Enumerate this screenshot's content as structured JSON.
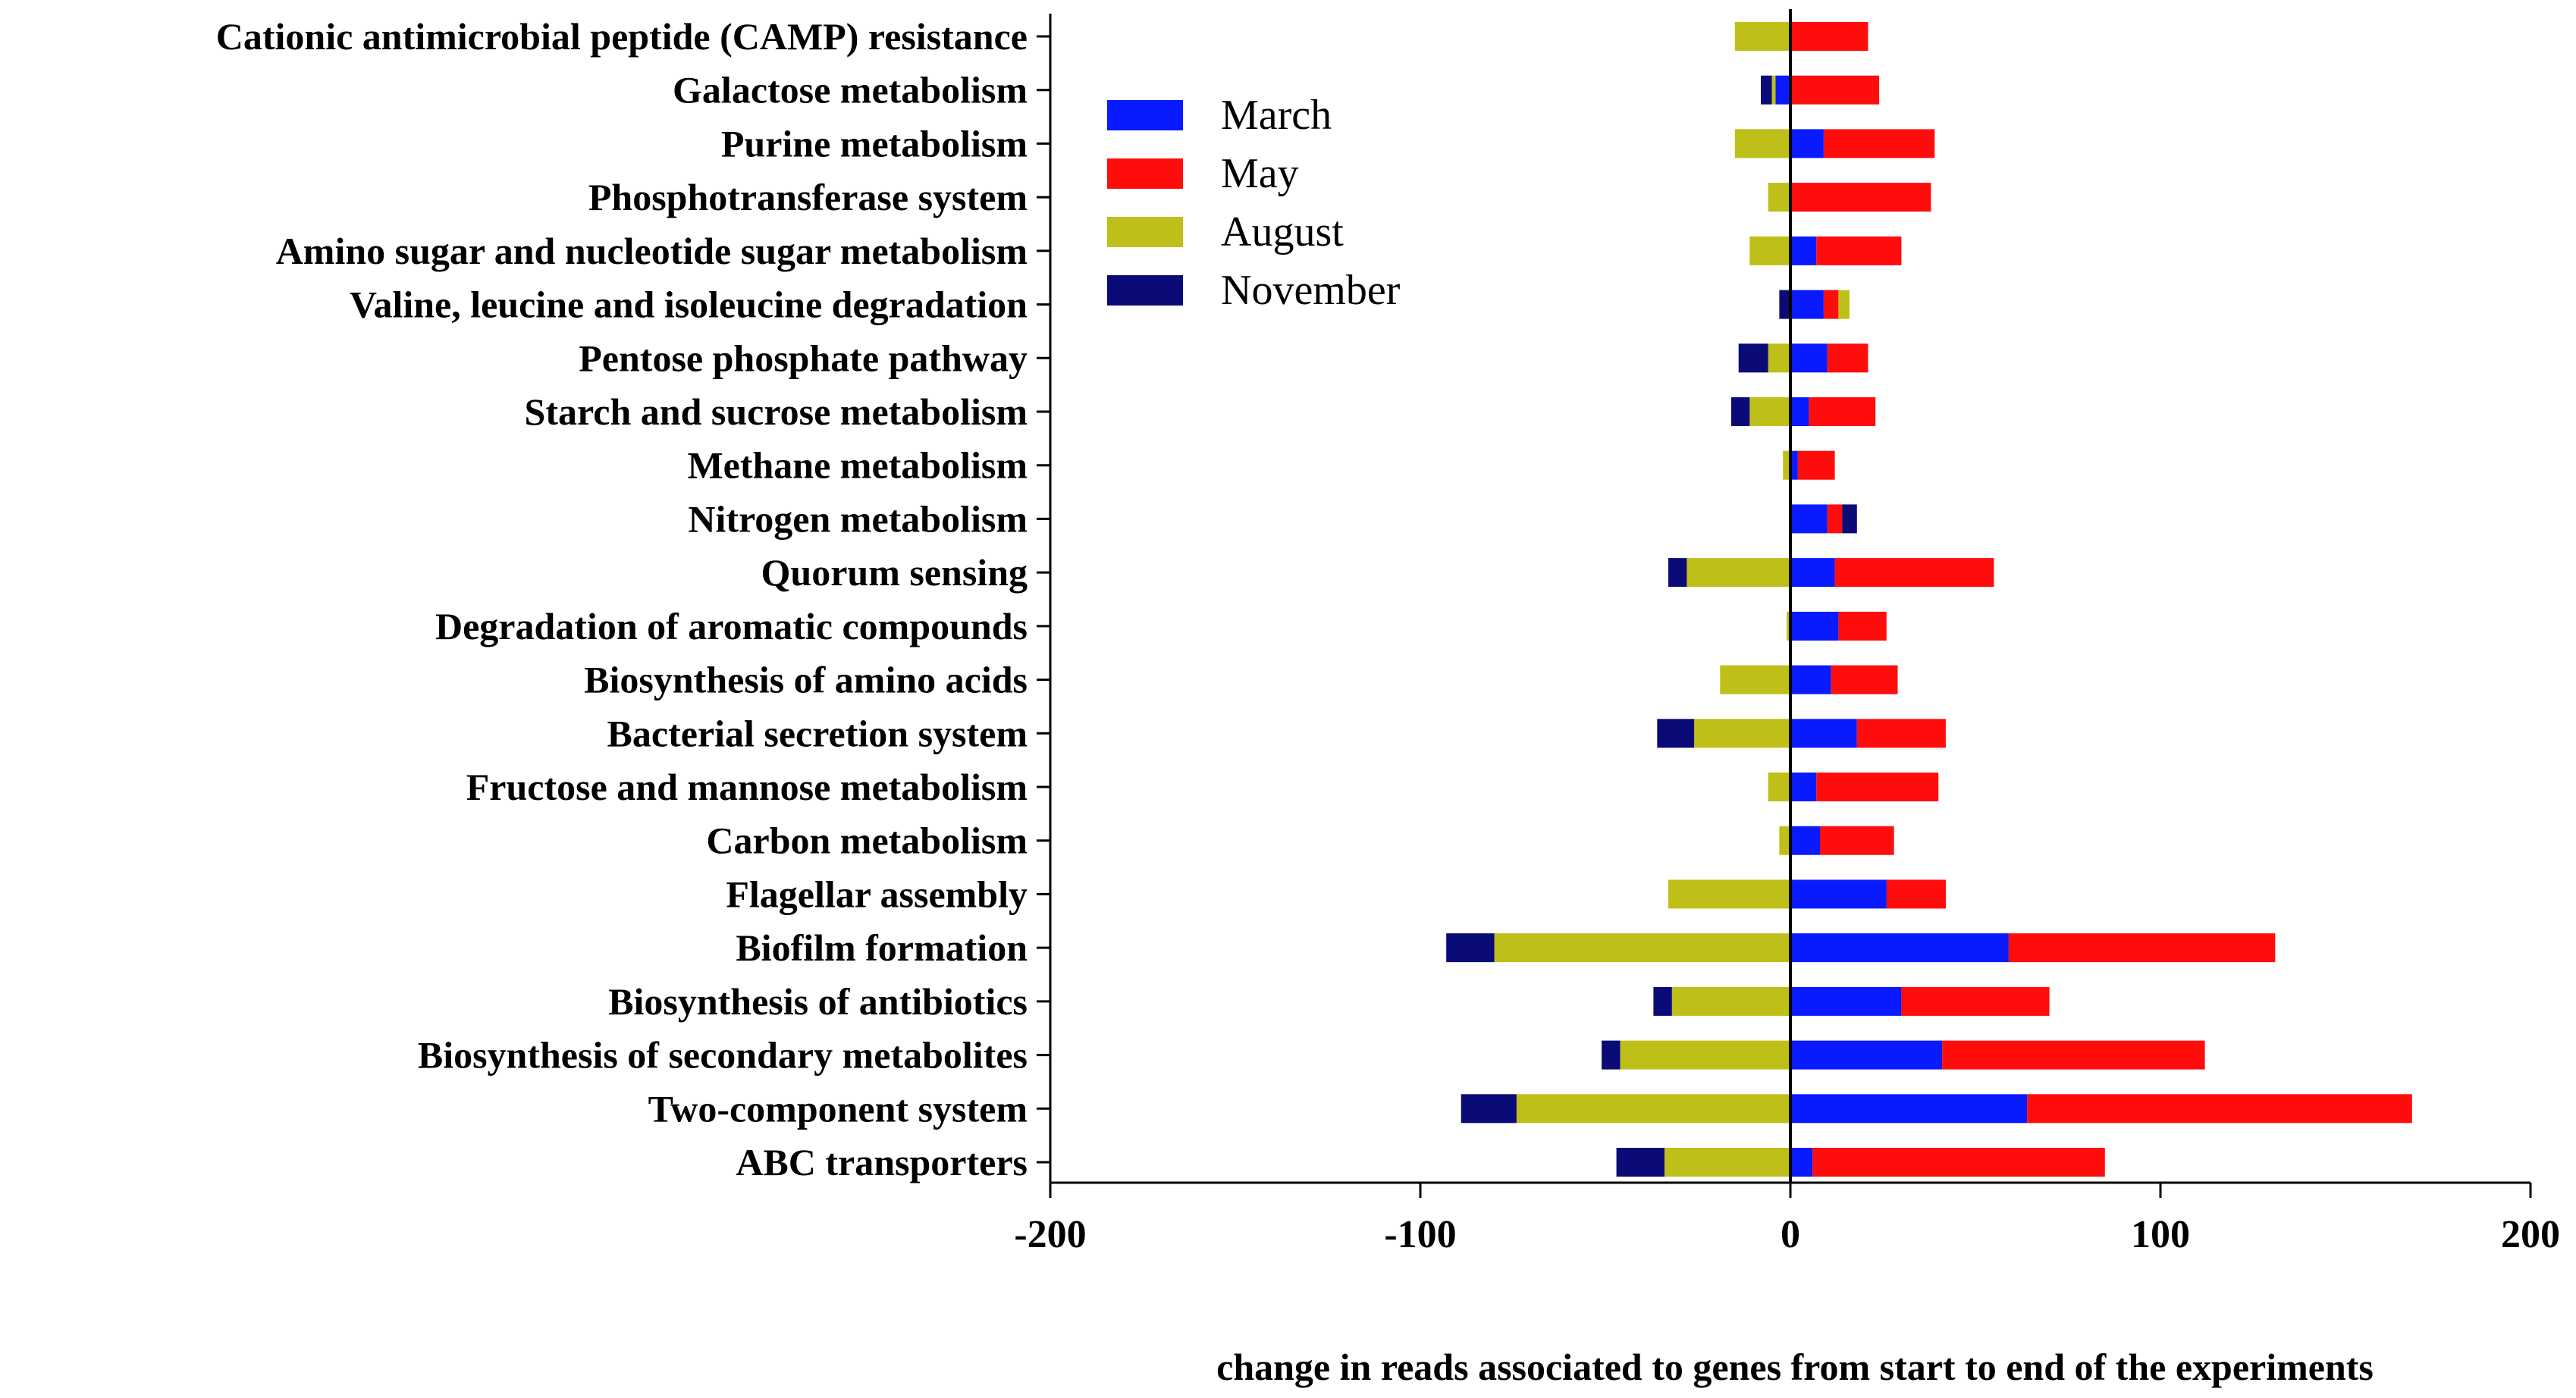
{
  "chart_data": {
    "type": "bar",
    "orientation": "horizontal",
    "stacked": "diverging",
    "title": "",
    "xlabel": "change in reads associated to genes from start to end of the experiments",
    "ylabel": "",
    "xlim": [
      -200,
      200
    ],
    "xticks": [
      "-200",
      "-100",
      "0",
      "100",
      "200"
    ],
    "xtick_values": [
      -200,
      -100,
      0,
      100,
      200
    ],
    "legend": {
      "position": "top-left",
      "entries": [
        {
          "name": "March",
          "color": "#0a1aff"
        },
        {
          "name": "May",
          "color": "#ff0d0d"
        },
        {
          "name": "August",
          "color": "#bfbf1a"
        },
        {
          "name": "November",
          "color": "#0b0b78"
        }
      ]
    },
    "categories": [
      "Cationic antimicrobial peptide (CAMP) resistance",
      "Galactose metabolism",
      "Purine metabolism",
      "Phosphotransferase system",
      "Amino sugar and nucleotide sugar metabolism",
      "Valine, leucine and isoleucine degradation",
      "Pentose phosphate pathway",
      "Starch and sucrose metabolism",
      "Methane metabolism",
      "Nitrogen metabolism",
      "Quorum sensing",
      "Degradation of aromatic compounds",
      "Biosynthesis of amino acids",
      "Bacterial secretion system",
      "Fructose and mannose metabolism",
      "Carbon metabolism",
      "Flagellar assembly",
      "Biofilm formation",
      "Biosynthesis of antibiotics",
      "Biosynthesis of secondary metabolites",
      "Two-component system",
      "ABC transporters"
    ],
    "series": [
      {
        "name": "March",
        "color": "#0a1aff",
        "values": [
          0,
          -4,
          9,
          0,
          7,
          9,
          10,
          5,
          2,
          10,
          12,
          13,
          11,
          18,
          7,
          8,
          26,
          59,
          30,
          41,
          64,
          6
        ]
      },
      {
        "name": "May",
        "color": "#ff0d0d",
        "values": [
          21,
          24,
          30,
          38,
          23,
          4,
          11,
          18,
          10,
          4,
          43,
          13,
          18,
          24,
          33,
          20,
          16,
          72,
          40,
          71,
          104,
          79
        ]
      },
      {
        "name": "August",
        "color": "#bfbf1a",
        "values": [
          -15,
          -1,
          -15,
          -6,
          -11,
          3,
          -6,
          -11,
          -2,
          0,
          -28,
          -1,
          -19,
          -26,
          -6,
          -3,
          -33,
          -80,
          -32,
          -46,
          -74,
          -34
        ]
      },
      {
        "name": "November",
        "color": "#0b0b78",
        "values": [
          0,
          -3,
          0,
          0,
          0,
          -3,
          -8,
          -5,
          0,
          4,
          -5,
          0,
          0,
          -10,
          0,
          0,
          0,
          -13,
          -5,
          -5,
          -15,
          -13
        ]
      }
    ]
  }
}
